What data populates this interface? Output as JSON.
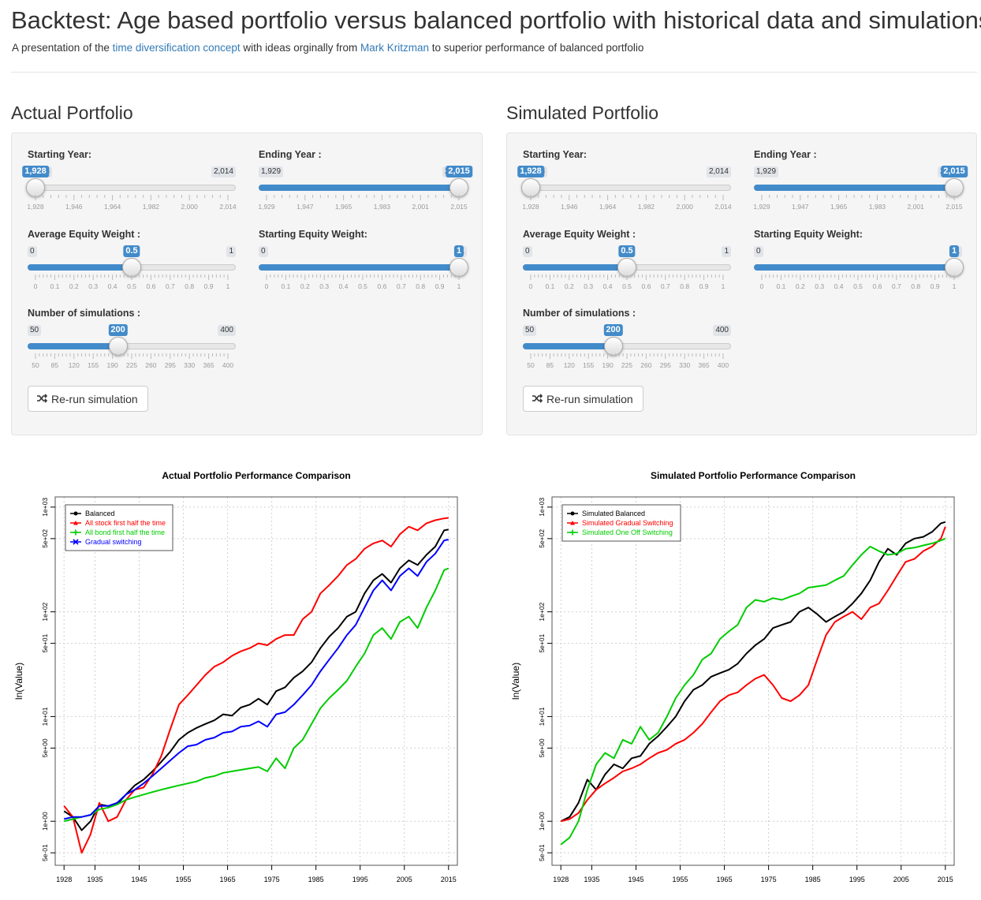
{
  "header": {
    "title": "Backtest: Age based portfolio versus balanced portfolio with historical data and simulations",
    "sub_pre": "A presentation of the ",
    "sub_link1": "time diversification concept",
    "sub_mid": " with ideas orginally from ",
    "sub_link2": "Mark Kritzman",
    "sub_post": " to superior performance of balanced portfolio"
  },
  "panels": [
    {
      "title": "Actual Portfolio",
      "button_label": "Re-run simulation",
      "button_icon": "shuffle-icon",
      "sliders": [
        {
          "label": "Starting Year:",
          "min": "1,928",
          "max": "2,014",
          "value": "1,928",
          "min_n": 1928,
          "max_n": 2014,
          "val_n": 1928,
          "range_from_start": false,
          "ticks": [
            "1,928",
            "1,946",
            "1,964",
            "1,982",
            "2,000",
            "2,014"
          ]
        },
        {
          "label": "Ending Year :",
          "min": "1,929",
          "max": "2,015",
          "value": "2,015",
          "min_n": 1929,
          "max_n": 2015,
          "val_n": 2015,
          "range_from_start": true,
          "ticks": [
            "1,929",
            "1,947",
            "1,965",
            "1,983",
            "2,001",
            "2,015"
          ]
        },
        {
          "label": "Average Equity Weight :",
          "min": "0",
          "max": "1",
          "value": "0.5",
          "min_n": 0,
          "max_n": 1,
          "val_n": 0.5,
          "range_from_start": true,
          "ticks": [
            "0",
            "0.1",
            "0.2",
            "0.3",
            "0.4",
            "0.5",
            "0.6",
            "0.7",
            "0.8",
            "0.9",
            "1"
          ]
        },
        {
          "label": "Starting Equity Weight:",
          "min": "0",
          "max": "1",
          "value": "1",
          "min_n": 0,
          "max_n": 1,
          "val_n": 1,
          "range_from_start": true,
          "ticks": [
            "0",
            "0.1",
            "0.2",
            "0.3",
            "0.4",
            "0.5",
            "0.6",
            "0.7",
            "0.8",
            "0.9",
            "1"
          ]
        },
        {
          "label": "Number of simulations :",
          "min": "50",
          "max": "400",
          "value": "200",
          "min_n": 50,
          "max_n": 400,
          "val_n": 200,
          "range_from_start": true,
          "ticks": [
            "50",
            "85",
            "120",
            "155",
            "190",
            "225",
            "260",
            "295",
            "330",
            "365",
            "400"
          ]
        }
      ]
    },
    {
      "title": "Simulated Portfolio",
      "button_label": "Re-run simulation",
      "button_icon": "shuffle-icon",
      "sliders": [
        {
          "label": "Starting Year:",
          "min": "1,928",
          "max": "2,014",
          "value": "1,928",
          "min_n": 1928,
          "max_n": 2014,
          "val_n": 1928,
          "range_from_start": false,
          "ticks": [
            "1,928",
            "1,946",
            "1,964",
            "1,982",
            "2,000",
            "2,014"
          ]
        },
        {
          "label": "Ending Year :",
          "min": "1,929",
          "max": "2,015",
          "value": "2,015",
          "min_n": 1929,
          "max_n": 2015,
          "val_n": 2015,
          "range_from_start": true,
          "ticks": [
            "1,929",
            "1,947",
            "1,965",
            "1,983",
            "2,001",
            "2,015"
          ]
        },
        {
          "label": "Average Equity Weight :",
          "min": "0",
          "max": "1",
          "value": "0.5",
          "min_n": 0,
          "max_n": 1,
          "val_n": 0.5,
          "range_from_start": true,
          "ticks": [
            "0",
            "0.1",
            "0.2",
            "0.3",
            "0.4",
            "0.5",
            "0.6",
            "0.7",
            "0.8",
            "0.9",
            "1"
          ]
        },
        {
          "label": "Starting Equity Weight:",
          "min": "0",
          "max": "1",
          "value": "1",
          "min_n": 0,
          "max_n": 1,
          "val_n": 1,
          "range_from_start": true,
          "ticks": [
            "0",
            "0.1",
            "0.2",
            "0.3",
            "0.4",
            "0.5",
            "0.6",
            "0.7",
            "0.8",
            "0.9",
            "1"
          ]
        },
        {
          "label": "Number of simulations :",
          "min": "50",
          "max": "400",
          "value": "200",
          "min_n": 50,
          "max_n": 400,
          "val_n": 200,
          "range_from_start": true,
          "ticks": [
            "50",
            "85",
            "120",
            "155",
            "190",
            "225",
            "260",
            "295",
            "330",
            "365",
            "400"
          ]
        }
      ]
    }
  ],
  "chart_data": [
    {
      "type": "line",
      "title": "Actual Portfolio Performance Comparison",
      "xlabel": "",
      "ylabel": "ln(Value)",
      "y_scale": "log",
      "xlim": [
        1926,
        2017
      ],
      "ylim": [
        0.38,
        1250
      ],
      "x_ticks": [
        1928,
        1935,
        1945,
        1955,
        1965,
        1975,
        1985,
        1995,
        2005,
        2015
      ],
      "y_ticks": [
        {
          "v": 0.5,
          "label": "5e-01"
        },
        {
          "v": 1,
          "label": "1e+00"
        },
        {
          "v": 5,
          "label": "5e+00"
        },
        {
          "v": 10,
          "label": "1e+01"
        },
        {
          "v": 50,
          "label": "5e+01"
        },
        {
          "v": 100,
          "label": "1e+02"
        },
        {
          "v": 500,
          "label": "5e+02"
        },
        {
          "v": 1000,
          "label": "1e+03"
        }
      ],
      "grid": true,
      "legend_position": "top-left",
      "series": [
        {
          "name": "Balanced",
          "color": "#000000",
          "marker": "circle",
          "x": [
            1928,
            1930,
            1932,
            1934,
            1936,
            1938,
            1940,
            1942,
            1944,
            1946,
            1948,
            1950,
            1952,
            1954,
            1956,
            1958,
            1960,
            1962,
            1964,
            1966,
            1968,
            1970,
            1972,
            1974,
            1976,
            1978,
            1980,
            1982,
            1984,
            1986,
            1988,
            1990,
            1992,
            1994,
            1996,
            1998,
            2000,
            2002,
            2004,
            2006,
            2008,
            2010,
            2012,
            2014,
            2015
          ],
          "y": [
            1.25,
            1.1,
            0.82,
            1.0,
            1.45,
            1.4,
            1.45,
            1.8,
            2.2,
            2.5,
            3.0,
            3.7,
            4.6,
            6.0,
            7.0,
            7.8,
            8.5,
            9.2,
            10.5,
            10.2,
            12.2,
            13.0,
            14.8,
            13.0,
            17.5,
            19.0,
            23.5,
            27.0,
            33.0,
            45.0,
            58.0,
            70.0,
            90.0,
            100.0,
            150.0,
            200.0,
            230.0,
            190.0,
            260.0,
            310.0,
            280.0,
            350.0,
            420.0,
            600.0,
            610.0
          ]
        },
        {
          "name": "All stock first half the time",
          "color": "#ff0000",
          "marker": "triangle",
          "x": [
            1928,
            1930,
            1932,
            1934,
            1936,
            1938,
            1940,
            1942,
            1944,
            1946,
            1948,
            1950,
            1952,
            1954,
            1956,
            1958,
            1960,
            1962,
            1964,
            1966,
            1968,
            1970,
            1972,
            1974,
            1976,
            1978,
            1980,
            1982,
            1984,
            1986,
            1988,
            1990,
            1992,
            1994,
            1996,
            1998,
            2000,
            2002,
            2004,
            2006,
            2008,
            2010,
            2012,
            2014,
            2015
          ],
          "y": [
            1.4,
            1.1,
            0.5,
            0.75,
            1.5,
            1.0,
            1.1,
            1.6,
            2.0,
            2.1,
            2.8,
            4.2,
            7.5,
            13.0,
            16.0,
            20.0,
            25.0,
            30.0,
            33.0,
            38.0,
            42.0,
            45.0,
            50.0,
            48.0,
            55.0,
            60.0,
            60.0,
            85.0,
            100.0,
            150.0,
            180.0,
            220.0,
            280.0,
            320.0,
            400.0,
            450.0,
            480.0,
            420.0,
            550.0,
            650.0,
            600.0,
            700.0,
            750.0,
            780.0,
            790.0
          ]
        },
        {
          "name": "All bond first half the time",
          "color": "#00cc00",
          "marker": "plus",
          "x": [
            1928,
            1930,
            1932,
            1934,
            1936,
            1938,
            1940,
            1942,
            1944,
            1946,
            1948,
            1950,
            1952,
            1954,
            1956,
            1958,
            1960,
            1962,
            1964,
            1966,
            1968,
            1970,
            1972,
            1974,
            1976,
            1978,
            1980,
            1982,
            1984,
            1986,
            1988,
            1990,
            1992,
            1994,
            1996,
            1998,
            2000,
            2002,
            2004,
            2006,
            2008,
            2010,
            2012,
            2014,
            2015
          ],
          "y": [
            1.0,
            1.05,
            1.1,
            1.15,
            1.3,
            1.35,
            1.45,
            1.6,
            1.7,
            1.8,
            1.9,
            2.0,
            2.1,
            2.2,
            2.3,
            2.4,
            2.6,
            2.7,
            2.9,
            3.0,
            3.1,
            3.2,
            3.3,
            3.0,
            4.0,
            3.2,
            5.0,
            6.0,
            8.5,
            12.0,
            15.0,
            18.0,
            22.0,
            30.0,
            40.0,
            60.0,
            70.0,
            55.0,
            80.0,
            90.0,
            70.0,
            110.0,
            160.0,
            250.0,
            260.0
          ]
        },
        {
          "name": "Gradual switching",
          "color": "#0000ff",
          "marker": "cross",
          "x": [
            1928,
            1930,
            1932,
            1934,
            1936,
            1938,
            1940,
            1942,
            1944,
            1946,
            1948,
            1950,
            1952,
            1954,
            1956,
            1958,
            1960,
            1962,
            1964,
            1966,
            1968,
            1970,
            1972,
            1974,
            1976,
            1978,
            1980,
            1982,
            1984,
            1986,
            1988,
            1990,
            1992,
            1994,
            1996,
            1998,
            2000,
            2002,
            2004,
            2006,
            2008,
            2010,
            2012,
            2014,
            2015
          ],
          "y": [
            1.05,
            1.1,
            1.1,
            1.15,
            1.4,
            1.4,
            1.5,
            1.8,
            2.0,
            2.3,
            2.7,
            3.2,
            3.8,
            4.5,
            5.2,
            5.4,
            6.0,
            6.3,
            7.0,
            7.2,
            8.0,
            8.2,
            9.0,
            8.0,
            10.5,
            11.0,
            13.0,
            16.0,
            20.0,
            27.0,
            35.0,
            45.0,
            60.0,
            75.0,
            110.0,
            160.0,
            200.0,
            160.0,
            220.0,
            260.0,
            220.0,
            300.0,
            360.0,
            480.0,
            490.0
          ]
        }
      ]
    },
    {
      "type": "line",
      "title": "Simulated Portfolio Performance Comparison",
      "xlabel": "",
      "ylabel": "ln(Value)",
      "y_scale": "log",
      "xlim": [
        1926,
        2017
      ],
      "ylim": [
        0.38,
        1250
      ],
      "x_ticks": [
        1928,
        1935,
        1945,
        1955,
        1965,
        1975,
        1985,
        1995,
        2005,
        2015
      ],
      "y_ticks": [
        {
          "v": 0.5,
          "label": "5e-01"
        },
        {
          "v": 1,
          "label": "1e+00"
        },
        {
          "v": 5,
          "label": "5e+00"
        },
        {
          "v": 10,
          "label": "1e+01"
        },
        {
          "v": 50,
          "label": "5e+01"
        },
        {
          "v": 100,
          "label": "1e+02"
        },
        {
          "v": 500,
          "label": "5e+02"
        },
        {
          "v": 1000,
          "label": "1e+03"
        }
      ],
      "grid": true,
      "legend_position": "top-left",
      "series": [
        {
          "name": "Simulated Balanced",
          "color": "#000000",
          "marker": "circle",
          "x": [
            1928,
            1930,
            1932,
            1934,
            1936,
            1938,
            1940,
            1942,
            1944,
            1946,
            1948,
            1950,
            1952,
            1954,
            1956,
            1958,
            1960,
            1962,
            1964,
            1966,
            1968,
            1970,
            1972,
            1974,
            1976,
            1978,
            1980,
            1982,
            1984,
            1986,
            1988,
            1990,
            1992,
            1994,
            1996,
            1998,
            2000,
            2002,
            2004,
            2006,
            2008,
            2010,
            2012,
            2014,
            2015
          ],
          "y": [
            1.0,
            1.1,
            1.5,
            2.5,
            2.0,
            2.8,
            3.5,
            3.2,
            4.0,
            4.2,
            5.5,
            6.5,
            8.0,
            10.0,
            14.0,
            18.0,
            20.0,
            24.0,
            26.0,
            28.0,
            32.0,
            40.0,
            48.0,
            55.0,
            70.0,
            75.0,
            80.0,
            100.0,
            110.0,
            95.0,
            80.0,
            90.0,
            100.0,
            120.0,
            150.0,
            200.0,
            300.0,
            400.0,
            350.0,
            450.0,
            500.0,
            520.0,
            580.0,
            700.0,
            720.0
          ]
        },
        {
          "name": "Simulated Gradual Switching",
          "color": "#ff0000",
          "marker": "triangle",
          "x": [
            1928,
            1930,
            1932,
            1934,
            1936,
            1938,
            1940,
            1942,
            1944,
            1946,
            1948,
            1950,
            1952,
            1954,
            1956,
            1958,
            1960,
            1962,
            1964,
            1966,
            1968,
            1970,
            1972,
            1974,
            1976,
            1978,
            1980,
            1982,
            1984,
            1986,
            1988,
            1990,
            1992,
            1994,
            1996,
            1998,
            2000,
            2002,
            2004,
            2006,
            2008,
            2010,
            2012,
            2014,
            2015
          ],
          "y": [
            1.0,
            1.05,
            1.2,
            1.6,
            2.0,
            2.3,
            2.6,
            3.0,
            3.2,
            3.5,
            4.0,
            4.5,
            4.8,
            5.5,
            6.0,
            7.0,
            8.5,
            11.0,
            14.0,
            16.0,
            17.0,
            20.0,
            23.0,
            25.0,
            20.0,
            15.0,
            14.0,
            16.0,
            20.0,
            35.0,
            60.0,
            80.0,
            90.0,
            100.0,
            85.0,
            110.0,
            120.0,
            160.0,
            220.0,
            300.0,
            320.0,
            380.0,
            420.0,
            500.0,
            650.0
          ]
        },
        {
          "name": "Simulated One Off Switching",
          "color": "#00cc00",
          "marker": "plus",
          "x": [
            1928,
            1930,
            1932,
            1934,
            1936,
            1938,
            1940,
            1942,
            1944,
            1946,
            1948,
            1950,
            1952,
            1954,
            1956,
            1958,
            1960,
            1962,
            1964,
            1966,
            1968,
            1970,
            1972,
            1974,
            1976,
            1978,
            1980,
            1982,
            1984,
            1986,
            1988,
            1990,
            1992,
            1994,
            1996,
            1998,
            2000,
            2002,
            2004,
            2006,
            2008,
            2010,
            2012,
            2014,
            2015
          ],
          "y": [
            0.6,
            0.7,
            1.0,
            2.0,
            3.5,
            4.5,
            4.0,
            6.0,
            5.5,
            8.0,
            6.0,
            7.0,
            10.0,
            15.0,
            20.0,
            25.0,
            35.0,
            40.0,
            55.0,
            65.0,
            75.0,
            110.0,
            130.0,
            125.0,
            135.0,
            130.0,
            140.0,
            150.0,
            170.0,
            175.0,
            180.0,
            200.0,
            220.0,
            280.0,
            350.0,
            420.0,
            380.0,
            350.0,
            360.0,
            400.0,
            410.0,
            430.0,
            450.0,
            480.0,
            500.0
          ]
        }
      ]
    }
  ]
}
